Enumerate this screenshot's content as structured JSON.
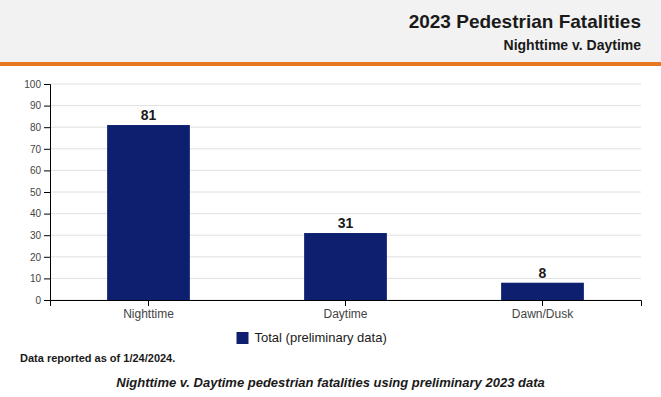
{
  "chart_data": {
    "type": "bar",
    "title": "2023 Pedestrian Fatalities",
    "subtitle": "Nighttime v. Daytime",
    "categories": [
      "Nighttime",
      "Daytime",
      "Dawn/Dusk"
    ],
    "series": [
      {
        "name": "Total (preliminary data)",
        "color": "#0D1F6E",
        "values": [
          81,
          31,
          8
        ]
      }
    ],
    "ylim": [
      0,
      100
    ],
    "yticks": [
      0,
      10,
      20,
      30,
      40,
      50,
      60,
      70,
      80,
      90,
      100
    ],
    "grid": true,
    "legend": "bottom",
    "data_labels": true,
    "annotations": [
      "Data reported as of 1/24/2024.",
      "Nighttime v. Daytime pedestrian fatalities using preliminary 2023 data"
    ]
  }
}
